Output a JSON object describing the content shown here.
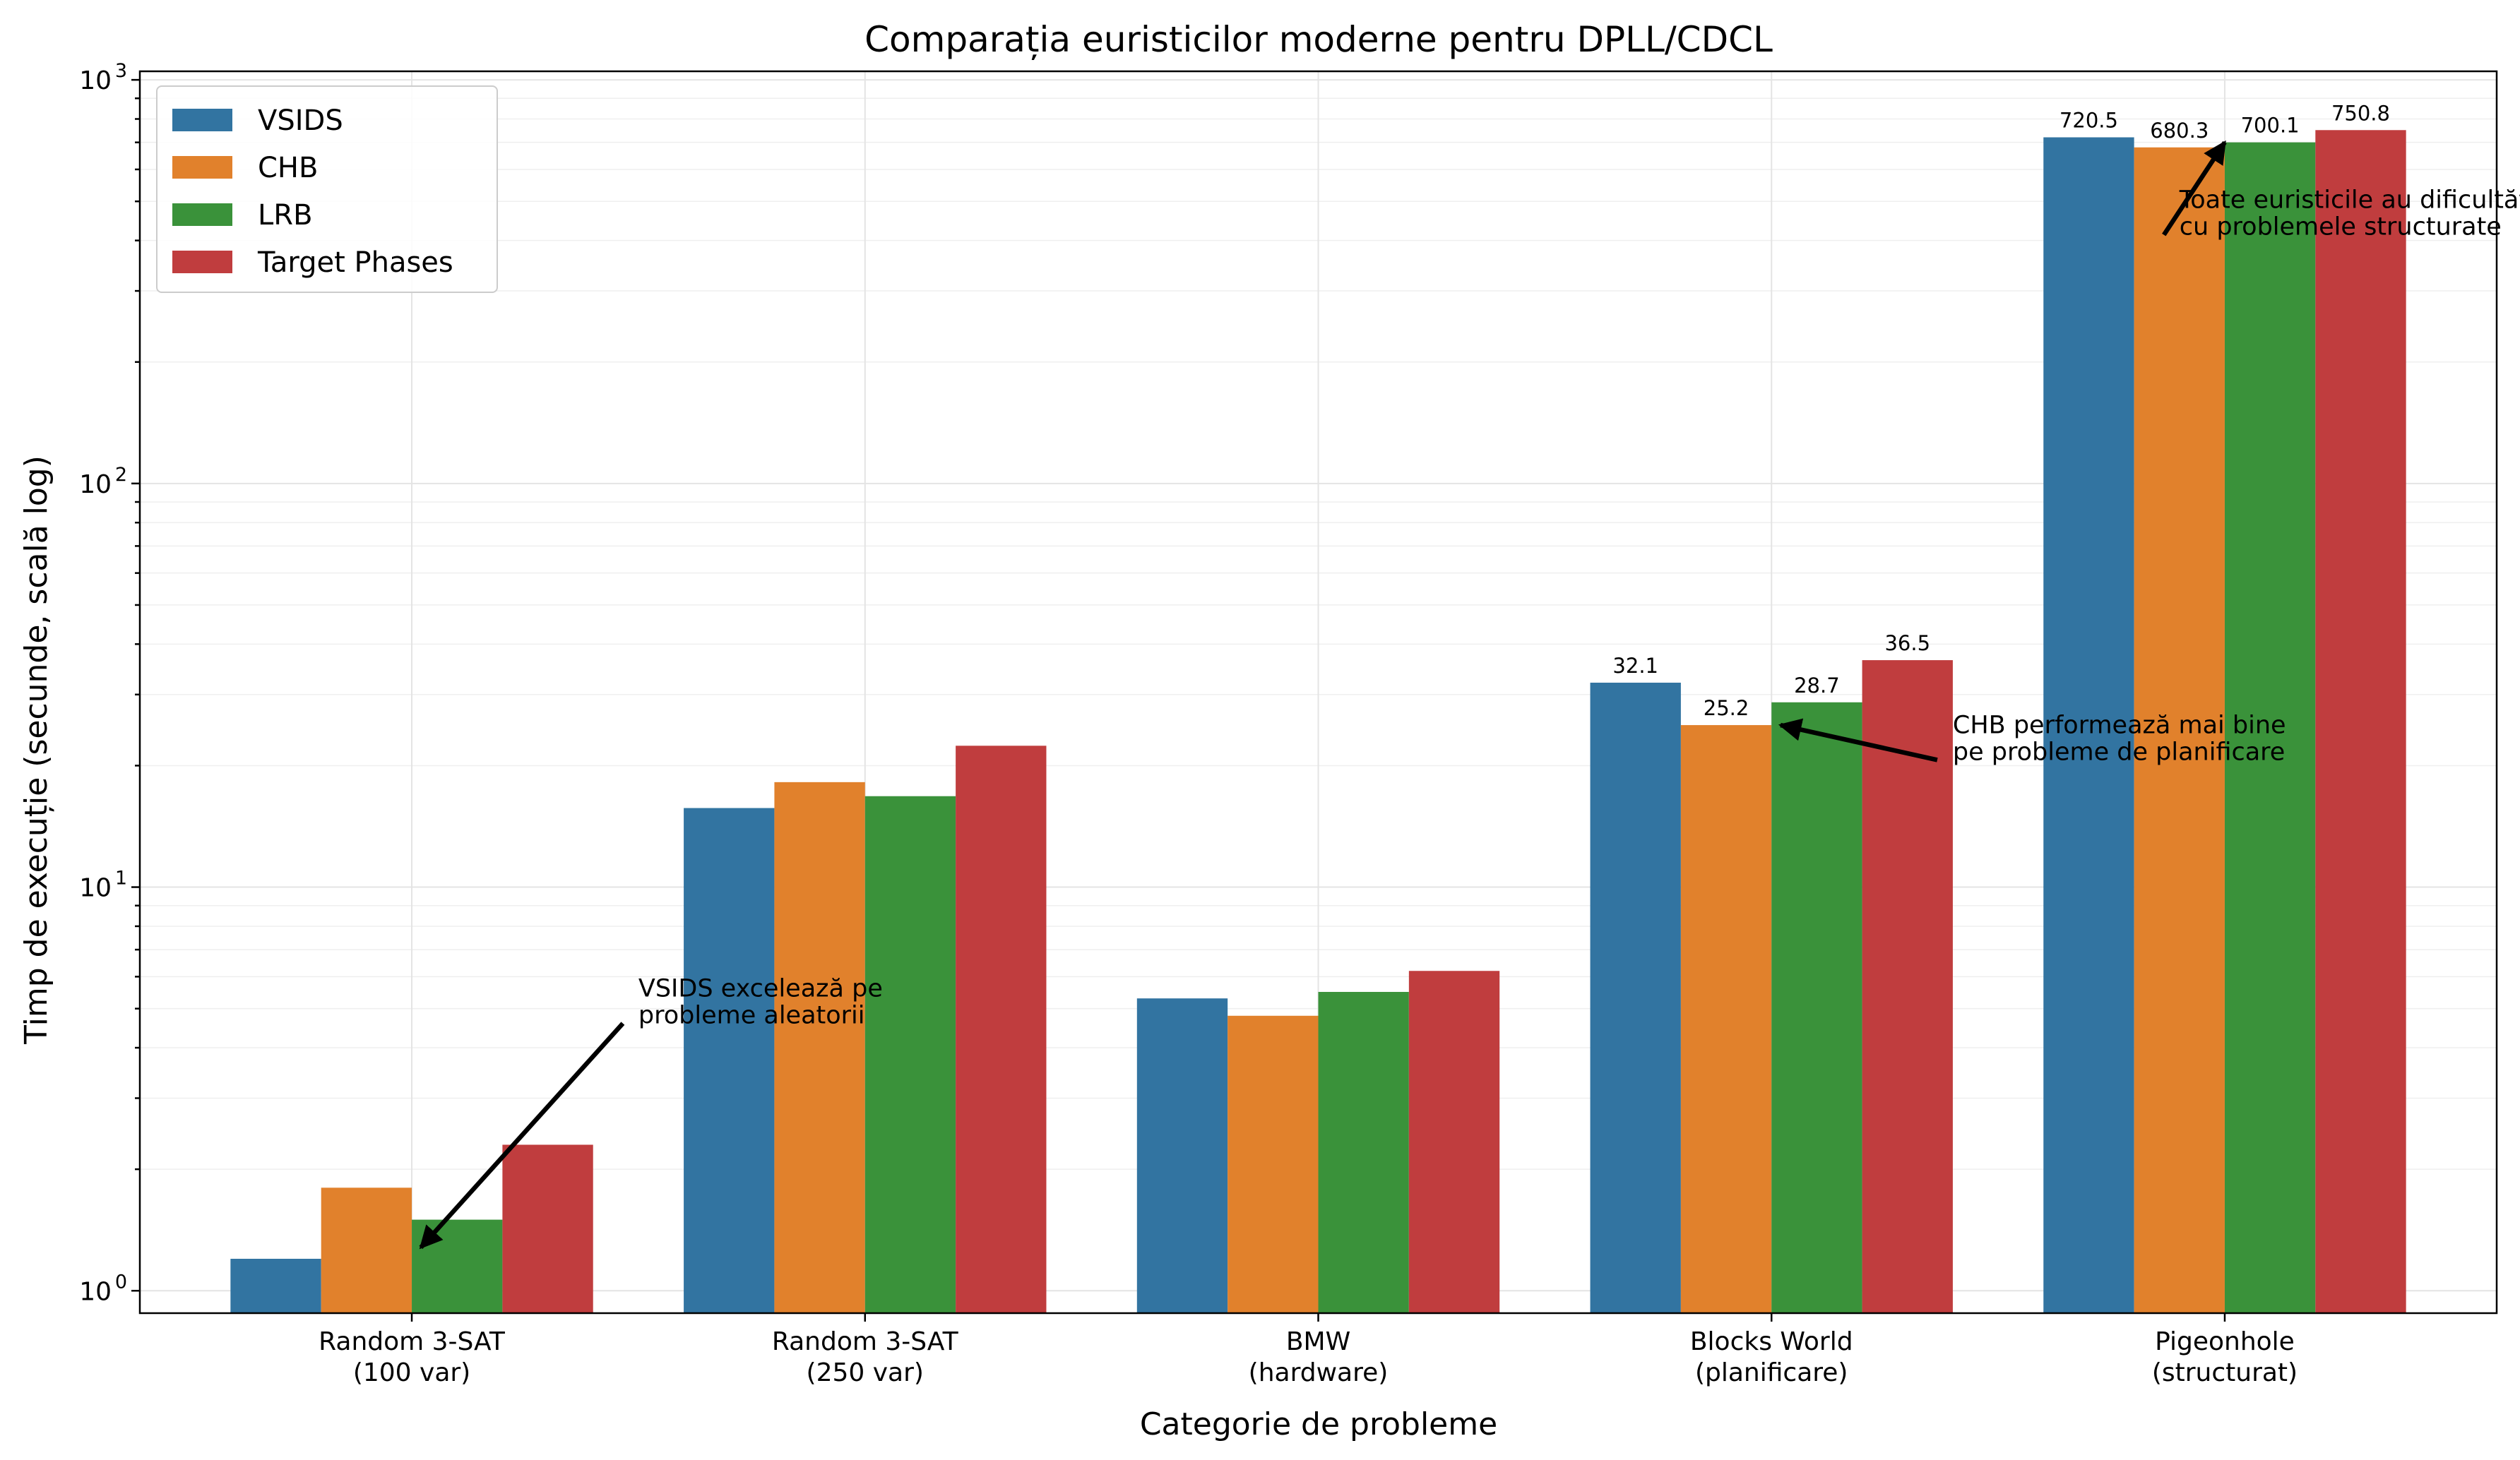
{
  "chart_data": {
    "type": "bar",
    "title": "Comparația euristicilor moderne pentru DPLL/CDCL",
    "xlabel": "Categorie de probleme",
    "ylabel": "Timp de execuție (secunde, scală log)",
    "yscale": "log",
    "ylim": [
      0.88,
      1050
    ],
    "y_ticks": [
      {
        "value": 1,
        "base": "10",
        "exp": "0"
      },
      {
        "value": 10,
        "base": "10",
        "exp": "1"
      },
      {
        "value": 100,
        "base": "10",
        "exp": "2"
      },
      {
        "value": 1000,
        "base": "10",
        "exp": "3"
      }
    ],
    "grid": true,
    "legend_position": "top-left",
    "categories": [
      [
        "Random 3-SAT",
        "(100 var)"
      ],
      [
        "Random 3-SAT",
        "(250 var)"
      ],
      [
        "BMW",
        "(hardware)"
      ],
      [
        "Blocks World",
        "(planificare)"
      ],
      [
        "Pigeonhole",
        "(structurat)"
      ]
    ],
    "series": [
      {
        "name": "VSIDS",
        "color": "#3274a1",
        "values": [
          1.2,
          15.7,
          5.3,
          32.1,
          720.5
        ]
      },
      {
        "name": "CHB",
        "color": "#e1812c",
        "values": [
          1.8,
          18.2,
          4.8,
          25.2,
          680.3
        ]
      },
      {
        "name": "LRB",
        "color": "#3a923a",
        "values": [
          1.5,
          16.8,
          5.5,
          28.7,
          700.1
        ]
      },
      {
        "name": "Target Phases",
        "color": "#c03d3e",
        "values": [
          2.3,
          22.4,
          6.2,
          36.5,
          750.8
        ]
      }
    ],
    "data_labels": [
      {
        "category": 3,
        "series": 0,
        "text": "32.1"
      },
      {
        "category": 3,
        "series": 1,
        "text": "25.2"
      },
      {
        "category": 3,
        "series": 2,
        "text": "28.7"
      },
      {
        "category": 3,
        "series": 3,
        "text": "36.5"
      },
      {
        "category": 4,
        "series": 0,
        "text": "720.5"
      },
      {
        "category": 4,
        "series": 1,
        "text": "680.3"
      },
      {
        "category": 4,
        "series": 2,
        "text": "700.1"
      },
      {
        "category": 4,
        "series": 3,
        "text": "750.8"
      }
    ],
    "annotations": [
      {
        "lines": [
          "VSIDS excelează pe",
          "probleme aleatorii"
        ],
        "text_at": {
          "x": 0.5,
          "y": 4.45
        },
        "arrow_to": {
          "x": 0.02,
          "y": 1.28
        }
      },
      {
        "lines": [
          "CHB performează mai bine",
          "pe probleme de planificare"
        ],
        "text_at": {
          "x": 3.4,
          "y": 20
        },
        "arrow_to": {
          "x": 3.02,
          "y": 25.2
        }
      },
      {
        "lines": [
          "Toate euristicile au dificultăți",
          "cu problemele structurate"
        ],
        "text_at": {
          "x": 3.9,
          "y": 400
        },
        "arrow_to": {
          "x": 4.0,
          "y": 700.1
        }
      }
    ]
  }
}
